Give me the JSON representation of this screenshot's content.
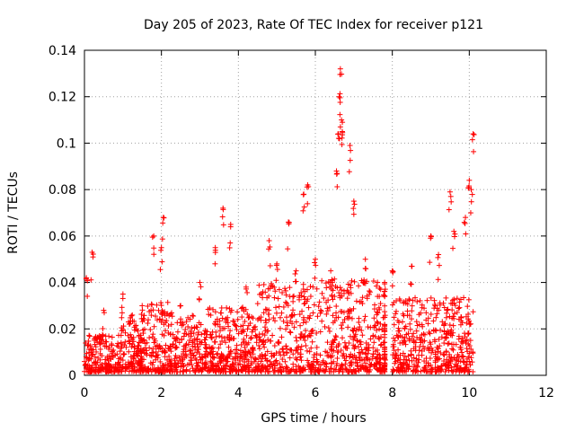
{
  "chart_data": {
    "type": "scatter",
    "title": "Day 205 of 2023, Rate Of TEC Index for receiver p121",
    "xlabel": "GPS time / hours",
    "ylabel": "ROTI / TECUs",
    "xlim": [
      0,
      12
    ],
    "ylim": [
      0,
      0.14
    ],
    "xticks": [
      "0",
      "2",
      "4",
      "6",
      "8",
      "10",
      "12"
    ],
    "yticks": [
      "0",
      "0.02",
      "0.04",
      "0.06",
      "0.08",
      "0.1",
      "0.12",
      "0.14"
    ],
    "grid": true,
    "marker": "+",
    "color": "#ff0000",
    "series": [
      {
        "name": "ROTI",
        "note": "dense cluster of thousands of points from 0 to ~10.1 h; notable excursions listed",
        "x": [
          0.05,
          0.2,
          0.5,
          1.0,
          1.5,
          1.8,
          2.0,
          2.05,
          2.5,
          3.0,
          3.4,
          3.6,
          3.8,
          4.2,
          4.8,
          5.0,
          5.3,
          5.5,
          5.7,
          5.8,
          6.0,
          6.4,
          6.55,
          6.6,
          6.62,
          6.65,
          6.68,
          6.7,
          6.9,
          7.0,
          7.3,
          7.8,
          8.0,
          8.5,
          9.0,
          9.2,
          9.5,
          9.6,
          9.9,
          10.0,
          10.05,
          10.1
        ],
        "y": [
          0.042,
          0.053,
          0.028,
          0.035,
          0.03,
          0.06,
          0.055,
          0.068,
          0.03,
          0.04,
          0.055,
          0.072,
          0.065,
          0.038,
          0.058,
          0.048,
          0.066,
          0.045,
          0.078,
          0.082,
          0.05,
          0.045,
          0.088,
          0.104,
          0.12,
          0.132,
          0.11,
          0.105,
          0.099,
          0.075,
          0.05,
          0.04,
          0.045,
          0.047,
          0.06,
          0.052,
          0.079,
          0.062,
          0.068,
          0.084,
          0.08,
          0.104
        ]
      }
    ]
  }
}
